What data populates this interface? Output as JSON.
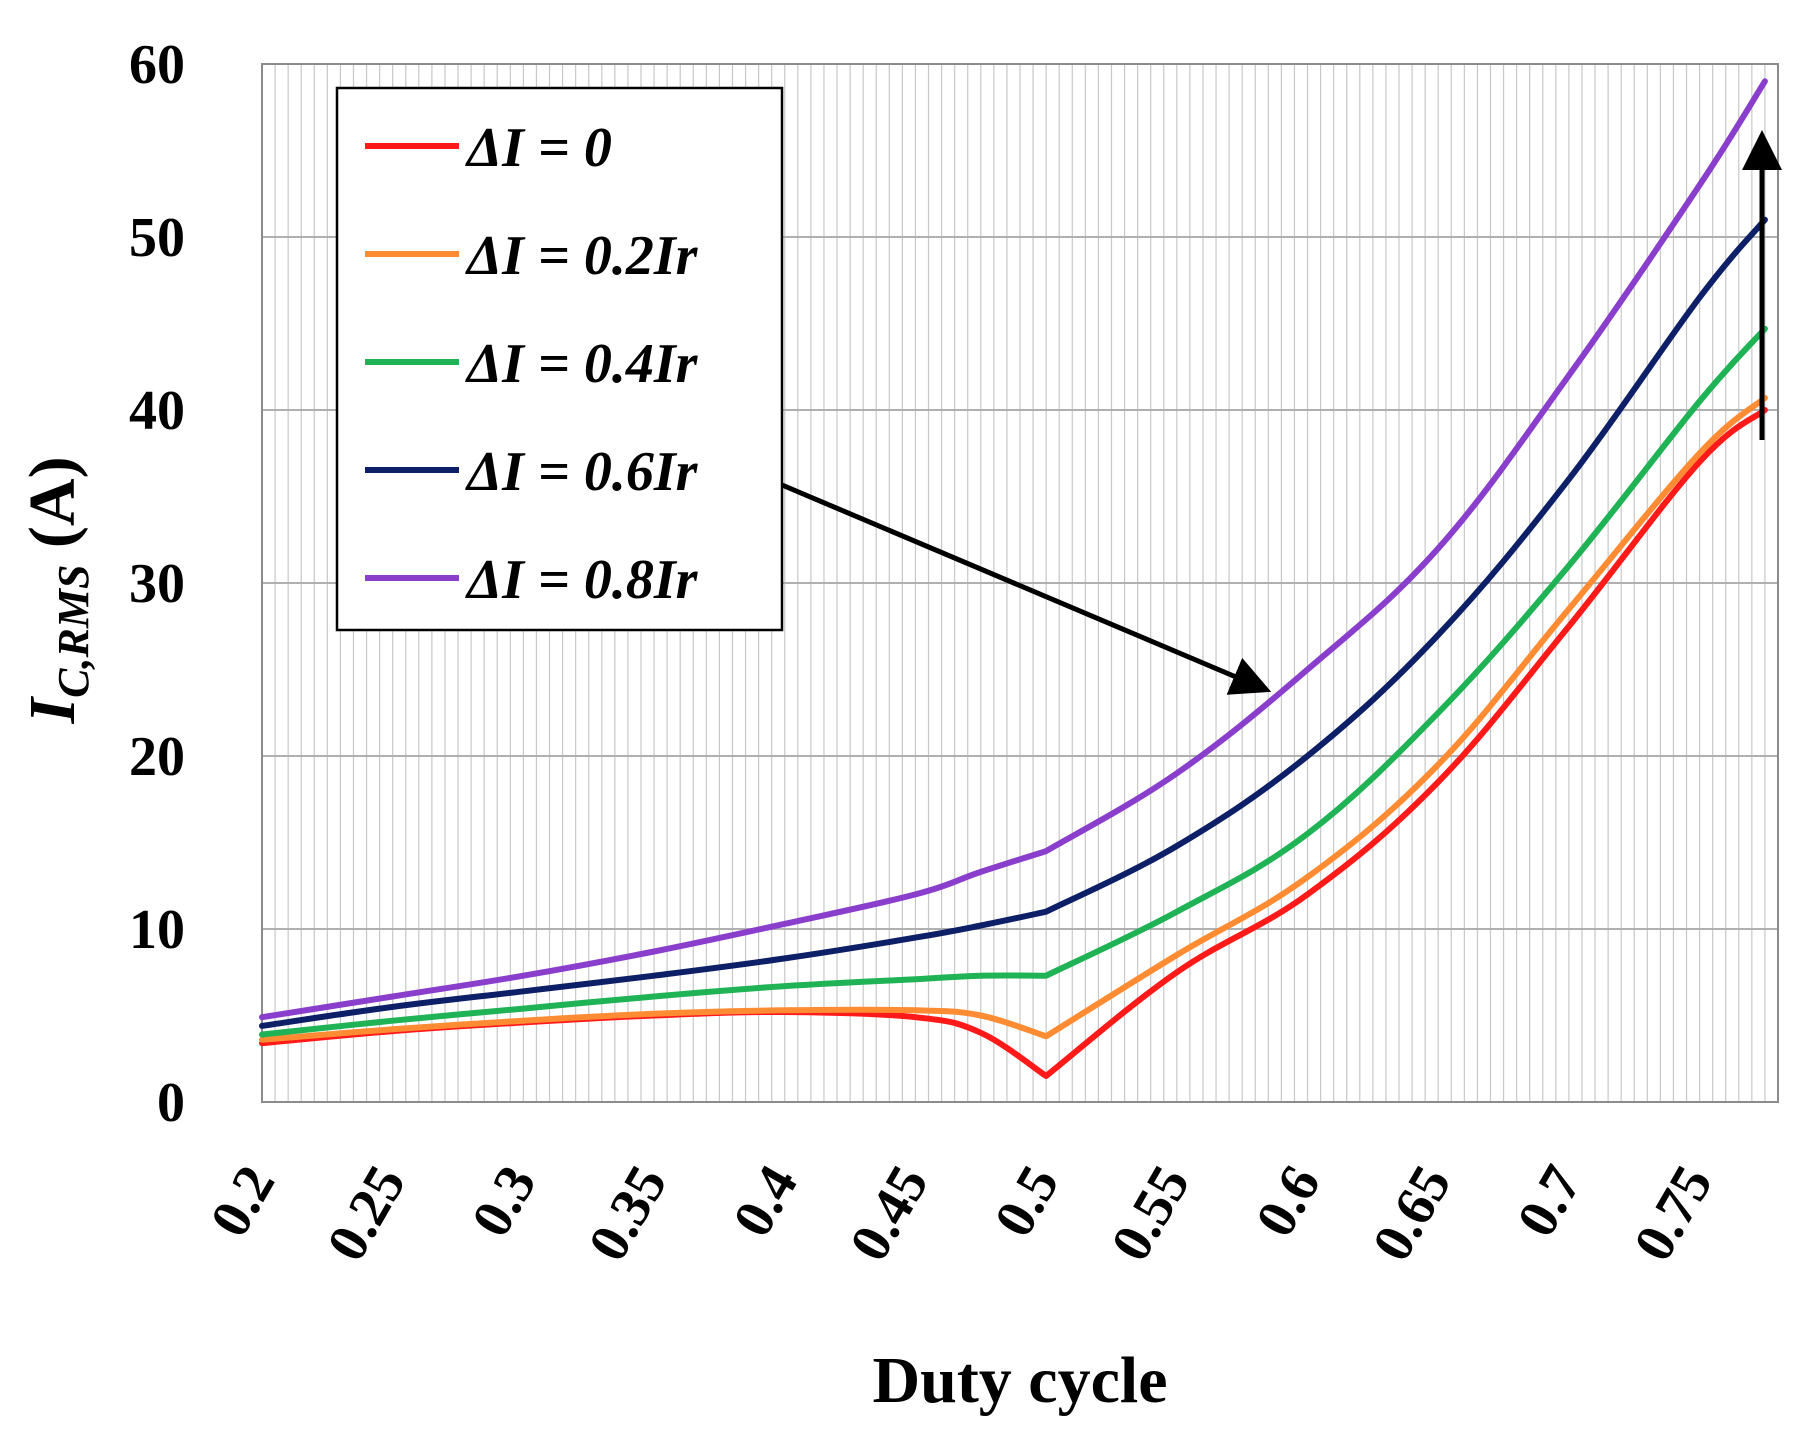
{
  "chart_data": {
    "type": "line",
    "title": "",
    "xlabel": "Duty cycle",
    "ylabel": {
      "symbol": "I",
      "subscript": "C,RMS",
      "unit": " (A)"
    },
    "xlim": [
      0.2,
      0.78
    ],
    "ylim": [
      0,
      60
    ],
    "x_ticks": [
      "0.2",
      "0.25",
      "0.3",
      "0.35",
      "0.4",
      "0.45",
      "0.5",
      "0.55",
      "0.6",
      "0.65",
      "0.7",
      "0.75"
    ],
    "x_tick_values": [
      0.2,
      0.25,
      0.3,
      0.35,
      0.4,
      0.45,
      0.5,
      0.55,
      0.6,
      0.65,
      0.7,
      0.75
    ],
    "y_ticks": [
      "0",
      "10",
      "20",
      "30",
      "40",
      "50",
      "60"
    ],
    "y_tick_values": [
      0,
      10,
      20,
      30,
      40,
      50,
      60
    ],
    "grid": true,
    "minor_x_gridlines": true,
    "legend_position": "top-left",
    "x": [
      0.2,
      0.25,
      0.3,
      0.35,
      0.4,
      0.45,
      0.475,
      0.5,
      0.55,
      0.6,
      0.65,
      0.7,
      0.75,
      0.775
    ],
    "series": [
      {
        "name": "ΔI = 0",
        "color": "#ff1a1a",
        "values": [
          3.4,
          4.1,
          4.6,
          5.0,
          5.2,
          4.9,
          4.0,
          1.5,
          7.5,
          12.0,
          18.5,
          27.5,
          37.0,
          40.0
        ]
      },
      {
        "name": "ΔI = 0.2Ir",
        "color": "#ff8c33",
        "values": [
          3.6,
          4.2,
          4.7,
          5.1,
          5.3,
          5.3,
          5.0,
          3.8,
          8.5,
          13.0,
          19.5,
          28.5,
          37.5,
          40.7
        ]
      },
      {
        "name": "ΔI = 0.4Ir",
        "color": "#1fb356",
        "values": [
          3.9,
          4.7,
          5.4,
          6.1,
          6.7,
          7.1,
          7.3,
          7.3,
          11.0,
          15.5,
          22.5,
          31.0,
          40.5,
          44.7
        ]
      },
      {
        "name": "ΔI = 0.6Ir",
        "color": "#0d1f66",
        "values": [
          4.4,
          5.5,
          6.4,
          7.3,
          8.3,
          9.5,
          10.2,
          11.0,
          14.8,
          20.0,
          27.0,
          36.0,
          46.5,
          51.0
        ]
      },
      {
        "name": "ΔI = 0.8Ir",
        "color": "#8a3fcc",
        "values": [
          4.9,
          6.1,
          7.3,
          8.7,
          10.3,
          12.0,
          13.3,
          14.5,
          19.0,
          25.0,
          32.0,
          42.0,
          53.0,
          59.0
        ]
      }
    ],
    "annotations": [
      {
        "type": "arrow",
        "description": "diagonal arrow from legend toward curves"
      },
      {
        "type": "arrow",
        "description": "vertical arrow near x=0.775 indicating increasing ΔI"
      }
    ]
  },
  "colors": {
    "grid": "#c8c8c8",
    "axis": "#8c8c8c",
    "arrow": "#000000"
  }
}
